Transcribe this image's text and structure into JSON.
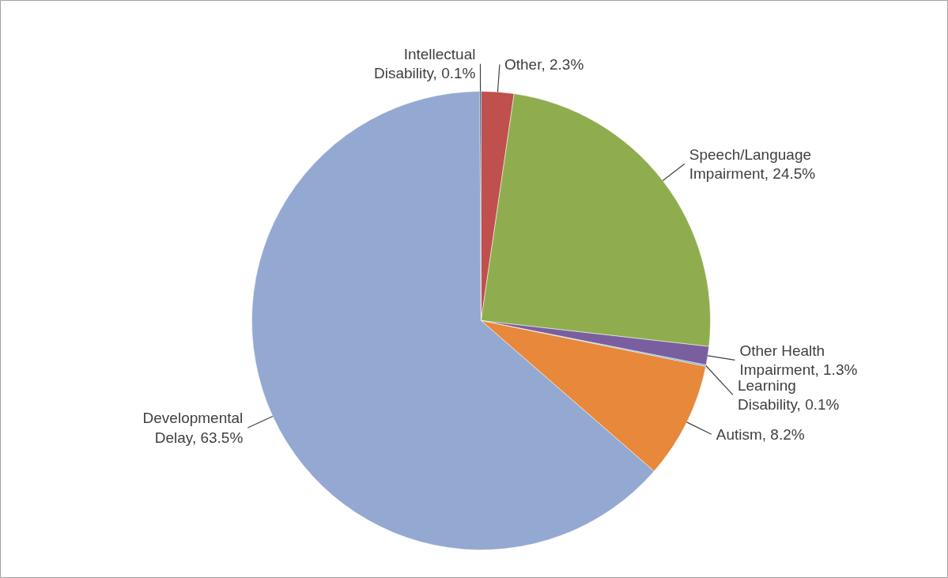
{
  "chart_data": {
    "type": "pie",
    "categories": [
      "Other",
      "Speech/Language Impairment",
      "Other Health Impairment",
      "Learning Disability",
      "Autism",
      "Developmental Delay",
      "Intellectual Disability"
    ],
    "values": [
      2.3,
      24.5,
      1.3,
      0.1,
      8.2,
      63.5,
      0.1
    ],
    "colors": [
      "#c0504d",
      "#8fad4e",
      "#7a5fa0",
      "#4bacc6",
      "#e8883a",
      "#93a9d2",
      "#2c4d75"
    ],
    "value_labels": [
      "2.3%",
      "24.5%",
      "1.3%",
      "0.1%",
      "8.2%",
      "63.5%",
      "0.1%"
    ]
  }
}
